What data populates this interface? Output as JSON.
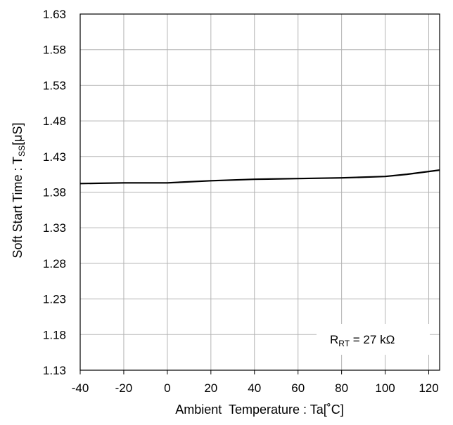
{
  "chart_data": {
    "type": "line",
    "title": "",
    "xlabel": "Ambient  Temperature : Ta[˚C]",
    "ylabel": {
      "main": "Soft Start Time : T",
      "sub": "SS",
      "suffix": "[μS]"
    },
    "xlim": [
      -40,
      125
    ],
    "ylim": [
      1.13,
      1.63
    ],
    "xticks": [
      "-40",
      "-20",
      "0",
      "20",
      "40",
      "60",
      "80",
      "100",
      "120"
    ],
    "yticks": [
      "1.13",
      "1.18",
      "1.23",
      "1.28",
      "1.33",
      "1.38",
      "1.43",
      "1.48",
      "1.53",
      "1.58",
      "1.63"
    ],
    "grid": true,
    "annotation": {
      "main": "R",
      "sub": "RT",
      "rest": " = 27 kΩ"
    },
    "series": [
      {
        "x": [
          -40,
          -20,
          0,
          20,
          40,
          60,
          80,
          100,
          110,
          125
        ],
        "y": [
          1.392,
          1.393,
          1.393,
          1.396,
          1.398,
          1.399,
          1.4,
          1.402,
          1.405,
          1.411
        ]
      }
    ]
  }
}
